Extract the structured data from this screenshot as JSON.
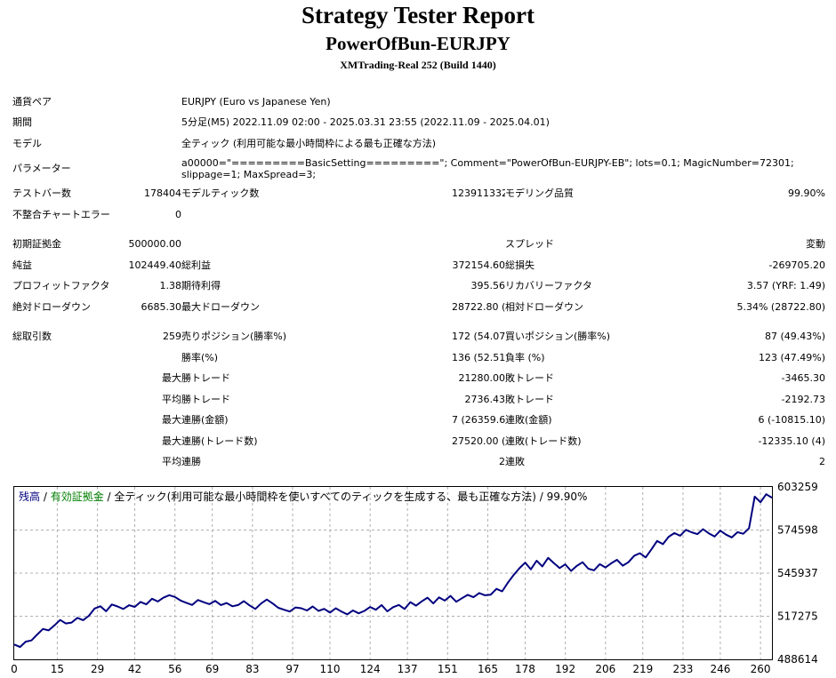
{
  "header": {
    "title": "Strategy Tester Report",
    "subtitle": "PowerOfBun-EURJPY",
    "server": "XMTrading-Real 252 (Build 1440)"
  },
  "info": {
    "symbol_label": "通貨ペア",
    "symbol": "EURJPY (Euro vs Japanese Yen)",
    "period_label": "期間",
    "period": "5分足(M5) 2022.11.09 02:00 - 2025.03.31 23:55 (2022.11.09 - 2025.04.01)",
    "model_label": "モデル",
    "model": "全ティック (利用可能な最小時間枠による最も正確な方法)",
    "params_label": "パラメーター",
    "params": "a00000=\"=========BasicSetting=========\"; Comment=\"PowerOfBun-EURJPY-EB\"; lots=0.1; MagicNumber=72301; slippage=1; MaxSpread=3;"
  },
  "stats": {
    "bars_label": "テストバー数",
    "bars": "178404",
    "ticks_label": "モデルティック数",
    "ticks": "123911332",
    "quality_label": "モデリング品質",
    "quality": "99.90%",
    "mismatch_label": "不整合チャートエラー",
    "mismatch": "0",
    "deposit_label": "初期証拠金",
    "deposit": "500000.00",
    "spread_label": "スプレッド",
    "spread": "変動",
    "net_label": "純益",
    "net": "102449.40",
    "gross_profit_label": "総利益",
    "gross_profit": "372154.60",
    "gross_loss_label": "総損失",
    "gross_loss": "-269705.20",
    "pf_label": "プロフィットファクタ",
    "pf": "1.38",
    "expected_label": "期待利得",
    "expected": "395.56",
    "recovery_label": "リカバリーファクタ",
    "recovery": "3.57 (YRF: 1.49)",
    "abs_dd_label": "絶対ドローダウン",
    "abs_dd": "6685.30",
    "max_dd_label": "最大ドローダウン",
    "max_dd": "28722.80 (5.34%)",
    "rel_dd_label": "相対ドローダウン",
    "rel_dd": "5.34% (28722.80)",
    "trades_label": "総取引数",
    "trades": "259",
    "short_label": "売りポジション(勝率%)",
    "short": "172 (54.07%)",
    "long_label": "買いポジション(勝率%)",
    "long": "87 (49.43%)",
    "win_rate_label": "勝率(%)",
    "win_rate": "136 (52.51%)",
    "loss_rate_label": "負率 (%)",
    "loss_rate": "123 (47.49%)",
    "max_label": "最大",
    "avg_label": "平均",
    "win_trade_label": "勝トレード",
    "loss_trade_label": "敗トレード",
    "largest_win": "21280.00",
    "largest_loss": "-3465.30",
    "avg_win": "2736.43",
    "avg_loss": "-2192.73",
    "cons_win_amt_label": "連勝(金額)",
    "cons_win_amt": "7 (26359.60)",
    "cons_loss_amt_label": "連敗(金額)",
    "cons_loss_amt": "6 (-10815.10)",
    "cons_win_trd_label": "連勝(トレード数)",
    "cons_win_trd": "27520.00 (3)",
    "cons_loss_trd_label": "連敗(トレード数)",
    "cons_loss_trd": "-12335.10 (4)",
    "avg_cons_win_label": "連勝",
    "avg_cons_win": "2",
    "avg_cons_loss_label": "連敗",
    "avg_cons_loss": "2"
  },
  "chart_data": {
    "type": "line",
    "legend": {
      "balance": "残高",
      "sep1": " / ",
      "equity": "有効証拠金",
      "rest": " / 全ティック(利用可能な最小時間枠を使いすべてのティックを生成する、最も正確な方法) / 99.90%"
    },
    "series": [
      {
        "name": "残高",
        "color": "#00007f"
      }
    ],
    "x_ticks": [
      "0",
      "15",
      "29",
      "42",
      "56",
      "69",
      "83",
      "97",
      "110",
      "124",
      "137",
      "151",
      "165",
      "178",
      "192",
      "206",
      "219",
      "233",
      "246",
      "260"
    ],
    "y_ticks": [
      "603259",
      "574598",
      "545937",
      "517275",
      "488614"
    ],
    "ylim": [
      488614,
      603259
    ],
    "xlim": [
      0,
      264
    ],
    "colors": {
      "balance": "#00007f",
      "equity": "#008000",
      "grid": "#b0b0b0"
    },
    "x": [
      0,
      2,
      4,
      6,
      8,
      10,
      12,
      14,
      16,
      18,
      20,
      22,
      24,
      26,
      28,
      30,
      32,
      34,
      36,
      38,
      40,
      42,
      44,
      46,
      48,
      50,
      52,
      54,
      56,
      58,
      60,
      62,
      64,
      66,
      68,
      70,
      72,
      74,
      76,
      78,
      80,
      82,
      84,
      86,
      88,
      90,
      92,
      94,
      96,
      98,
      100,
      102,
      104,
      106,
      108,
      110,
      112,
      114,
      116,
      118,
      120,
      122,
      124,
      126,
      128,
      130,
      132,
      134,
      136,
      138,
      140,
      142,
      144,
      146,
      148,
      150,
      152,
      154,
      156,
      158,
      160,
      162,
      164,
      166,
      168,
      170,
      172,
      174,
      176,
      178,
      180,
      182,
      184,
      186,
      188,
      190,
      192,
      194,
      196,
      198,
      200,
      202,
      204,
      206,
      208,
      210,
      212,
      214,
      216,
      218,
      220,
      222,
      224,
      226,
      228,
      230,
      232,
      234,
      236,
      238,
      240,
      242,
      244,
      246,
      248,
      250,
      252,
      254,
      256,
      258,
      260,
      262,
      264
    ],
    "values": [
      498500,
      496800,
      500400,
      501200,
      505100,
      508800,
      507900,
      511200,
      514800,
      512500,
      513100,
      516200,
      514700,
      517600,
      522400,
      523900,
      520600,
      525100,
      523800,
      522100,
      524600,
      523500,
      526800,
      525200,
      528900,
      527100,
      529600,
      531300,
      530100,
      527700,
      526200,
      524800,
      528100,
      526600,
      525300,
      527500,
      524700,
      526100,
      523900,
      524700,
      527300,
      524500,
      522100,
      525700,
      528400,
      525800,
      522900,
      521600,
      520400,
      523100,
      522600,
      521100,
      523800,
      520800,
      522200,
      519700,
      522600,
      520400,
      518500,
      521100,
      519200,
      520800,
      523400,
      521600,
      524700,
      520500,
      523300,
      524800,
      522100,
      526700,
      524300,
      527200,
      529600,
      525800,
      529800,
      527700,
      530800,
      526900,
      529300,
      531500,
      529900,
      532700,
      531200,
      531600,
      535500,
      533800,
      539600,
      544700,
      549200,
      552900,
      548500,
      554200,
      550400,
      556100,
      552700,
      549300,
      551800,
      547400,
      550700,
      553200,
      548900,
      547800,
      551900,
      549700,
      552500,
      554800,
      550900,
      553200,
      557500,
      559200,
      556400,
      561800,
      567400,
      565200,
      570100,
      572600,
      570800,
      574700,
      573100,
      571900,
      575200,
      572400,
      570300,
      574200,
      571500,
      569700,
      573200,
      572100,
      575800,
      596800,
      593100,
      598400,
      596100
    ]
  }
}
